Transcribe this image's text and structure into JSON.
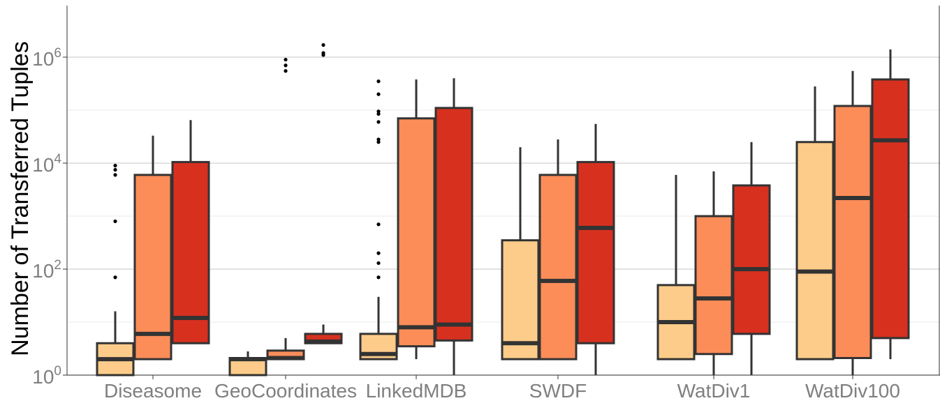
{
  "chart_data": {
    "type": "boxplot",
    "title": "",
    "xlabel": "",
    "ylabel": "Number of Transferred Tuples",
    "yscale": "log10",
    "ylim": [
      1,
      9000000
    ],
    "yticks": [
      {
        "value": 1,
        "label_base": "10",
        "label_exp": "0"
      },
      {
        "value": 100,
        "label_base": "10",
        "label_exp": "2"
      },
      {
        "value": 10000,
        "label_base": "10",
        "label_exp": "4"
      },
      {
        "value": 1000000,
        "label_base": "10",
        "label_exp": "6"
      }
    ],
    "grid": true,
    "legend": "none",
    "categories": [
      "Diseasome",
      "GeoCoordinates",
      "LinkedMDB",
      "SWDF",
      "WatDiv1",
      "WatDiv100"
    ],
    "series": [
      {
        "color": "#fdcc8a",
        "boxes": [
          {
            "whisker_low": 1,
            "q1": 1,
            "median": 2,
            "q3": 4,
            "whisker_high": 16,
            "outliers": [
              70,
              800,
              6000,
              7500,
              9000
            ]
          },
          {
            "whisker_low": 1,
            "q1": 1,
            "median": 2,
            "q3": 2.1,
            "whisker_high": 2.8,
            "outliers": []
          },
          {
            "whisker_low": 2,
            "q1": 2,
            "median": 2.5,
            "q3": 6,
            "whisker_high": 30,
            "outliers": [
              70,
              130,
              200,
              700,
              25000,
              28000,
              60000,
              85000,
              95000,
              200000,
              350000
            ]
          },
          {
            "whisker_low": 2,
            "q1": 2,
            "median": 4,
            "q3": 350,
            "whisker_high": 20000,
            "outliers": []
          },
          {
            "whisker_low": 2,
            "q1": 2,
            "median": 10,
            "q3": 50,
            "whisker_high": 6000,
            "outliers": []
          },
          {
            "whisker_low": 2,
            "q1": 2,
            "median": 90,
            "q3": 25000,
            "whisker_high": 280000,
            "outliers": []
          }
        ]
      },
      {
        "color": "#fc8d59",
        "boxes": [
          {
            "whisker_low": 2,
            "q1": 2,
            "median": 6,
            "q3": 6000,
            "whisker_high": 33000,
            "outliers": []
          },
          {
            "whisker_low": 2,
            "q1": 2,
            "median": 2.1,
            "q3": 2.9,
            "whisker_high": 5,
            "outliers": [
              550000,
              700000,
              900000
            ]
          },
          {
            "whisker_low": 2,
            "q1": 3.5,
            "median": 8,
            "q3": 70000,
            "whisker_high": 380000,
            "outliers": []
          },
          {
            "whisker_low": 2,
            "q1": 2,
            "median": 60,
            "q3": 6000,
            "whisker_high": 28000,
            "outliers": []
          },
          {
            "whisker_low": 1,
            "q1": 2.5,
            "median": 28,
            "q3": 1000,
            "whisker_high": 7000,
            "outliers": []
          },
          {
            "whisker_low": 1,
            "q1": 2.1,
            "median": 2200,
            "q3": 120000,
            "whisker_high": 550000,
            "outliers": []
          }
        ]
      },
      {
        "color": "#d7301f",
        "boxes": [
          {
            "whisker_low": 4,
            "q1": 4,
            "median": 12,
            "q3": 10500,
            "whisker_high": 65000,
            "outliers": []
          },
          {
            "whisker_low": 4,
            "q1": 4,
            "median": 4.3,
            "q3": 6,
            "whisker_high": 9,
            "outliers": [
              1100000,
              1200000,
              1700000
            ]
          },
          {
            "whisker_low": 1,
            "q1": 4.5,
            "median": 9,
            "q3": 110000,
            "whisker_high": 400000,
            "outliers": []
          },
          {
            "whisker_low": 1,
            "q1": 4,
            "median": 600,
            "q3": 10500,
            "whisker_high": 55000,
            "outliers": []
          },
          {
            "whisker_low": 1,
            "q1": 6,
            "median": 100,
            "q3": 3800,
            "whisker_high": 25000,
            "outliers": []
          },
          {
            "whisker_low": 2,
            "q1": 5,
            "median": 27000,
            "q3": 380000,
            "whisker_high": 1400000,
            "outliers": []
          }
        ]
      }
    ]
  }
}
